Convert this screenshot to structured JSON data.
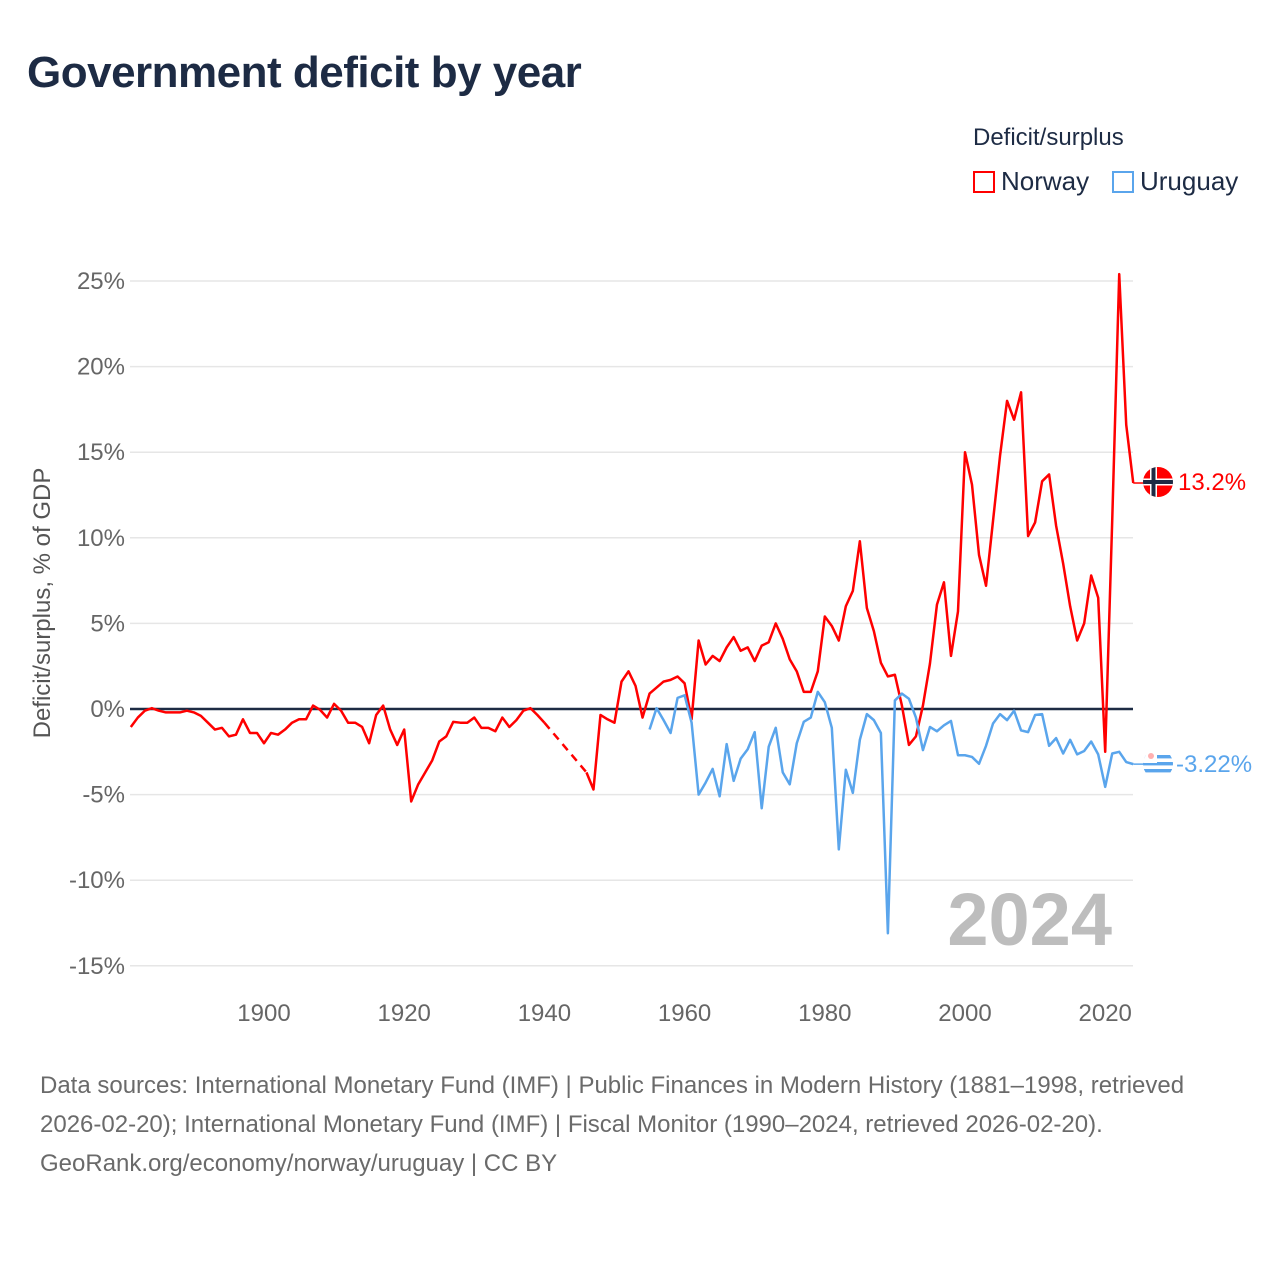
{
  "title": "Government deficit by year",
  "legend": {
    "title": "Deficit/surplus",
    "items": [
      {
        "name": "Norway",
        "color": "#ff0000"
      },
      {
        "name": "Uruguay",
        "color": "#5aa5ec"
      }
    ]
  },
  "year_watermark": "2024",
  "footer": {
    "sources": "Data sources: International Monetary Fund (IMF) | Public Finances in Modern History (1881–1998, retrieved 2026-02-20); International Monetary Fund (IMF) | Fiscal Monitor (1990–2024, retrieved 2026-02-20).",
    "credit": "GeoRank.org/economy/norway/uruguay | CC BY"
  },
  "chart_data": {
    "type": "line",
    "title": "Government deficit by year",
    "xlabel": "",
    "ylabel": "Deficit/surplus, % of GDP",
    "xlim": [
      1881,
      2024
    ],
    "ylim": [
      -16,
      26
    ],
    "x_ticks": [
      1900,
      1920,
      1940,
      1960,
      1980,
      2000,
      2020
    ],
    "x_tick_labels": [
      "1900",
      "1920",
      "1940",
      "1960",
      "1980",
      "2000",
      "2020"
    ],
    "y_ticks": [
      -15,
      -10,
      -5,
      0,
      5,
      10,
      15,
      20,
      25
    ],
    "y_tick_labels": [
      "-15%",
      "-10%",
      "-5%",
      "0%",
      "5%",
      "10%",
      "15%",
      "20%",
      "25%"
    ],
    "grid": true,
    "legend_position": "top-right",
    "series": [
      {
        "name": "Norway",
        "color": "#ff0000",
        "start_year": 1881,
        "end_label": "13.2%",
        "values": [
          -1.05,
          -0.5,
          -0.1,
          0.05,
          -0.1,
          -0.2,
          -0.2,
          -0.2,
          -0.1,
          -0.2,
          -0.4,
          -0.8,
          -1.2,
          -1.1,
          -1.6,
          -1.5,
          -0.6,
          -1.4,
          -1.4,
          -2.0,
          -1.4,
          -1.5,
          -1.2,
          -0.8,
          -0.6,
          -0.6,
          0.2,
          -0.05,
          -0.5,
          0.3,
          -0.1,
          -0.8,
          -0.8,
          -1.05,
          -2.0,
          -0.35,
          0.2,
          -1.2,
          -2.1,
          -1.2,
          -5.4,
          -4.4,
          -3.7,
          -3.0,
          -1.9,
          -1.6,
          -0.75,
          -0.8,
          -0.8,
          -0.5,
          -1.1,
          -1.1,
          -1.3,
          -0.5,
          -1.05,
          -0.65,
          -0.1,
          0.05,
          -0.35,
          -0.8,
          null,
          null,
          null,
          null,
          null,
          -3.7,
          -4.7,
          -0.35,
          -0.6,
          -0.8,
          1.6,
          2.2,
          1.35,
          -0.5,
          0.9,
          1.25,
          1.6,
          1.7,
          1.9,
          1.5,
          -0.6,
          4.0,
          2.6,
          3.1,
          2.8,
          3.6,
          4.2,
          3.4,
          3.6,
          2.8,
          3.7,
          3.9,
          5.0,
          4.1,
          2.9,
          2.2,
          1.0,
          1.0,
          2.2,
          5.4,
          4.85,
          4.0,
          6.0,
          6.9,
          9.8,
          5.9,
          4.55,
          2.7,
          1.9,
          2.0,
          0.2,
          -2.1,
          -1.6,
          0.2,
          2.65,
          6.1,
          7.4,
          3.1,
          5.7,
          15.0,
          13.1,
          9.0,
          7.2,
          11.0,
          14.8,
          18.0,
          16.9,
          18.5,
          10.1,
          10.9,
          13.3,
          13.7,
          10.7,
          8.5,
          6.0,
          4.0,
          5.0,
          7.8,
          6.5,
          -2.5,
          11.0,
          25.4,
          16.6,
          13.2
        ]
      },
      {
        "name": "Uruguay",
        "color": "#5aa5ec",
        "start_year": 1955,
        "end_label": "-3.22%",
        "values": [
          -1.2,
          0.05,
          -0.65,
          -1.4,
          0.65,
          0.8,
          -0.8,
          -5.0,
          -4.3,
          -3.5,
          -5.1,
          -2.05,
          -4.2,
          -2.9,
          -2.35,
          -1.35,
          -5.8,
          -2.2,
          -1.1,
          -3.7,
          -4.4,
          -2.0,
          -0.75,
          -0.5,
          1.0,
          0.4,
          -1.1,
          -8.2,
          -3.55,
          -4.9,
          -1.8,
          -0.3,
          -0.65,
          -1.4,
          -13.1,
          0.5,
          0.9,
          0.6,
          -0.5,
          -2.4,
          -1.05,
          -1.3,
          -0.95,
          -0.7,
          -2.7,
          -2.7,
          -2.8,
          -3.2,
          -2.15,
          -0.85,
          -0.3,
          -0.65,
          -0.1,
          -1.25,
          -1.35,
          -0.35,
          -0.3,
          -2.15,
          -1.7,
          -2.6,
          -1.8,
          -2.65,
          -2.45,
          -1.9,
          -2.65,
          -4.55,
          -2.6,
          -2.5,
          -3.1,
          -3.22
        ]
      }
    ]
  }
}
